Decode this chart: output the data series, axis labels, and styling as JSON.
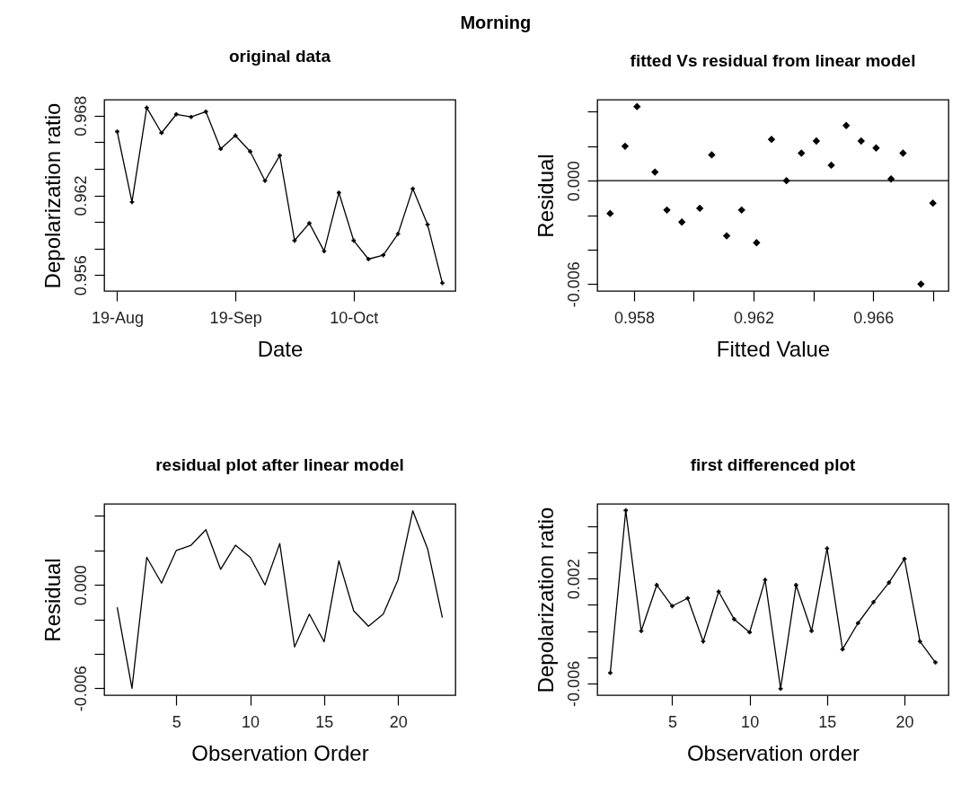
{
  "chart_data": [
    {
      "type": "line",
      "title": "Morning",
      "subtitle": "original data",
      "xlabel": "Date",
      "ylabel": "Depolarization ratio",
      "categories": [
        "19-Aug",
        null,
        null,
        null,
        null,
        null,
        null,
        null,
        "19-Sep",
        null,
        null,
        null,
        null,
        null,
        null,
        null,
        "10-Oct",
        null,
        null,
        null,
        null,
        null,
        null
      ],
      "series": [
        {
          "color": "#000000",
          "values": [
            0.9668,
            0.9615,
            0.9686,
            0.9667,
            0.9681,
            0.9679,
            0.9683,
            0.9655,
            0.9665,
            0.9653,
            0.9631,
            0.965,
            0.9586,
            0.9599,
            0.9578,
            0.9622,
            0.9586,
            0.9572,
            0.9575,
            0.9591,
            0.9625,
            0.9598,
            0.9554
          ]
        }
      ],
      "ylim": [
        0.9548,
        0.9692
      ],
      "yticks": [
        0.956,
        {
          "value": 0.958,
          "label": null
        },
        {
          "value": 0.96,
          "label": null
        },
        0.962,
        {
          "value": 0.964,
          "label": null
        },
        {
          "value": 0.966,
          "label": null
        },
        0.968
      ],
      "marker": "cross"
    },
    {
      "type": "scatter",
      "title": "fitted Vs residual from linear model",
      "xlabel": "Fitted Value",
      "ylabel": "Residual",
      "x": [
        0.9572,
        0.9577,
        0.9581,
        0.9587,
        0.9591,
        0.9596,
        0.9602,
        0.9606,
        0.9611,
        0.9616,
        0.9621,
        0.9626,
        0.9631,
        0.9636,
        0.9641,
        0.9646,
        0.9651,
        0.9656,
        0.9661,
        0.9666,
        0.967,
        0.9676,
        0.968
      ],
      "series": [
        {
          "color": "#000000",
          "values": [
            -0.0019,
            0.002,
            0.0043,
            0.0005,
            -0.0017,
            -0.0024,
            -0.0016,
            0.0015,
            -0.0032,
            -0.0017,
            -0.0036,
            0.0024,
            0.0,
            0.0016,
            0.0023,
            0.0009,
            0.0032,
            0.0023,
            0.0019,
            0.0001,
            0.0016,
            -0.006,
            -0.0013
          ]
        }
      ],
      "xlim": [
        0.95677,
        0.96852
      ],
      "xticks": [
        0.958,
        {
          "value": 0.96,
          "label": null
        },
        0.962,
        {
          "value": 0.964,
          "label": null
        },
        0.966,
        {
          "value": 0.968,
          "label": null
        }
      ],
      "ylim": [
        -0.0064,
        0.0047
      ],
      "yticks": [
        -0.006,
        {
          "value": -0.004,
          "label": null
        },
        {
          "value": -0.002,
          "label": null
        },
        {
          "value": 0,
          "label": "0.000"
        },
        {
          "value": 0.002,
          "label": null
        },
        {
          "value": 0.004,
          "label": null
        }
      ],
      "ref_lines": [
        {
          "axis": "y",
          "value": 0,
          "color": "#000000"
        }
      ],
      "marker": "diamond"
    },
    {
      "type": "line",
      "title": "residual plot after linear model",
      "xlabel": "Observation Order",
      "ylabel": "Residual",
      "x": [
        1,
        2,
        3,
        4,
        5,
        6,
        7,
        8,
        9,
        10,
        11,
        12,
        13,
        14,
        15,
        16,
        17,
        18,
        19,
        20,
        21,
        22,
        23
      ],
      "series": [
        {
          "color": "#000000",
          "values": [
            -0.0013,
            -0.006,
            0.0016,
            0.0001,
            0.002,
            0.0023,
            0.0032,
            0.0009,
            0.0023,
            0.0016,
            0.0,
            0.0024,
            -0.0036,
            -0.0017,
            -0.0033,
            0.0014,
            -0.0015,
            -0.0024,
            -0.0017,
            0.0003,
            0.0043,
            0.0021,
            -0.0019
          ]
        }
      ],
      "xlim": [
        0.12,
        23.88
      ],
      "xticks": [
        5,
        10,
        15,
        20
      ],
      "ylim": [
        -0.0064,
        0.0047
      ],
      "yticks": [
        -0.006,
        {
          "value": -0.004,
          "label": null
        },
        {
          "value": -0.002,
          "label": null
        },
        {
          "value": 0,
          "label": "0.000"
        },
        {
          "value": 0.002,
          "label": null
        },
        {
          "value": 0.004,
          "label": null
        }
      ]
    },
    {
      "type": "line",
      "title": "first differenced plot",
      "xlabel": "Observation order",
      "ylabel": "Depolarization ratio",
      "x": [
        1,
        2,
        3,
        4,
        5,
        6,
        7,
        8,
        9,
        10,
        11,
        12,
        13,
        14,
        15,
        16,
        17,
        18,
        19,
        20,
        21,
        22
      ],
      "series": [
        {
          "color": "#000000",
          "values": [
            -0.0052,
            0.0072,
            -0.002,
            0.0015,
            -0.0001,
            0.0005,
            -0.0028,
            0.001,
            -0.0011,
            -0.0021,
            0.0019,
            -0.0064,
            0.0015,
            -0.002,
            0.0043,
            -0.0034,
            -0.0014,
            0.0002,
            0.0017,
            0.0035,
            -0.0028,
            -0.0044
          ]
        }
      ],
      "xlim": [
        0.16,
        22.84
      ],
      "xticks": [
        5,
        10,
        15,
        20
      ],
      "ylim": [
        -0.0069,
        0.0077
      ],
      "yticks": [
        -0.006,
        {
          "value": -0.004,
          "label": null
        },
        {
          "value": -0.002,
          "label": null
        },
        {
          "value": 0,
          "label": null
        },
        0.002,
        {
          "value": 0.004,
          "label": null
        },
        {
          "value": 0.006,
          "label": null
        }
      ],
      "marker": "cross"
    }
  ]
}
